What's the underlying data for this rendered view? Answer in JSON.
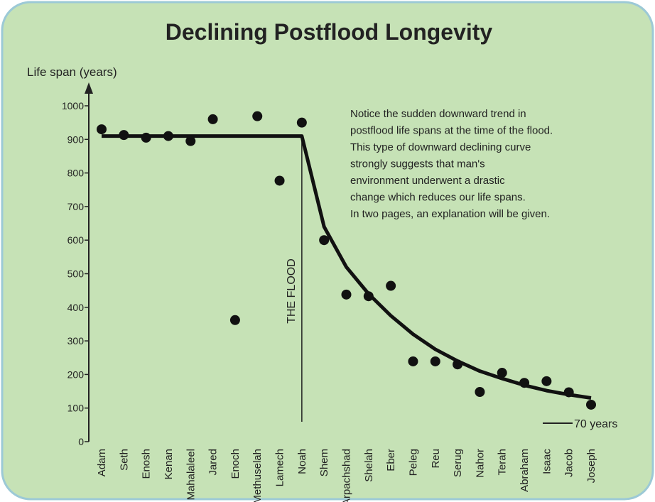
{
  "chart_data": {
    "type": "scatter",
    "title": "Declining Postflood Longevity",
    "y_label": "Life span (years)",
    "annotation": [
      "Notice the sudden downward trend in",
      "postflood life spans at the time of the flood.",
      "This type of downward declining curve",
      "strongly suggests that man's",
      "environment underwent a drastic",
      "change which reduces our life spans.",
      "In two pages, an explanation will be given."
    ],
    "flood_label": "THE FLOOD",
    "marker_label": "70 years",
    "categories": [
      "Adam",
      "Seth",
      "Enosh",
      "Kenan",
      "Mahalaleel",
      "Jared",
      "Enoch",
      "Methuselah",
      "Lamech",
      "Noah",
      "Shem",
      "Arpachshad",
      "Shelah",
      "Eber",
      "Peleg",
      "Reu",
      "Serug",
      "Nahor",
      "Terah",
      "Abraham",
      "Isaac",
      "Jacob",
      "Joseph"
    ],
    "series": [
      {
        "type": "scatter",
        "color": "#111111",
        "values": [
          930,
          913,
          905,
          910,
          895,
          960,
          362,
          969,
          777,
          950,
          600,
          438,
          433,
          464,
          239,
          239,
          230,
          148,
          205,
          175,
          180,
          147,
          110
        ]
      },
      {
        "type": "line",
        "color": "#111111",
        "values": [
          910,
          910,
          910,
          910,
          910,
          910,
          910,
          910,
          910,
          910,
          640,
          520,
          440,
          375,
          320,
          275,
          240,
          210,
          188,
          168,
          152,
          140,
          130
        ]
      }
    ],
    "ylim": [
      0,
      1000
    ],
    "yticks": [
      0,
      100,
      200,
      300,
      400,
      500,
      600,
      700,
      800,
      900,
      1000
    ]
  }
}
